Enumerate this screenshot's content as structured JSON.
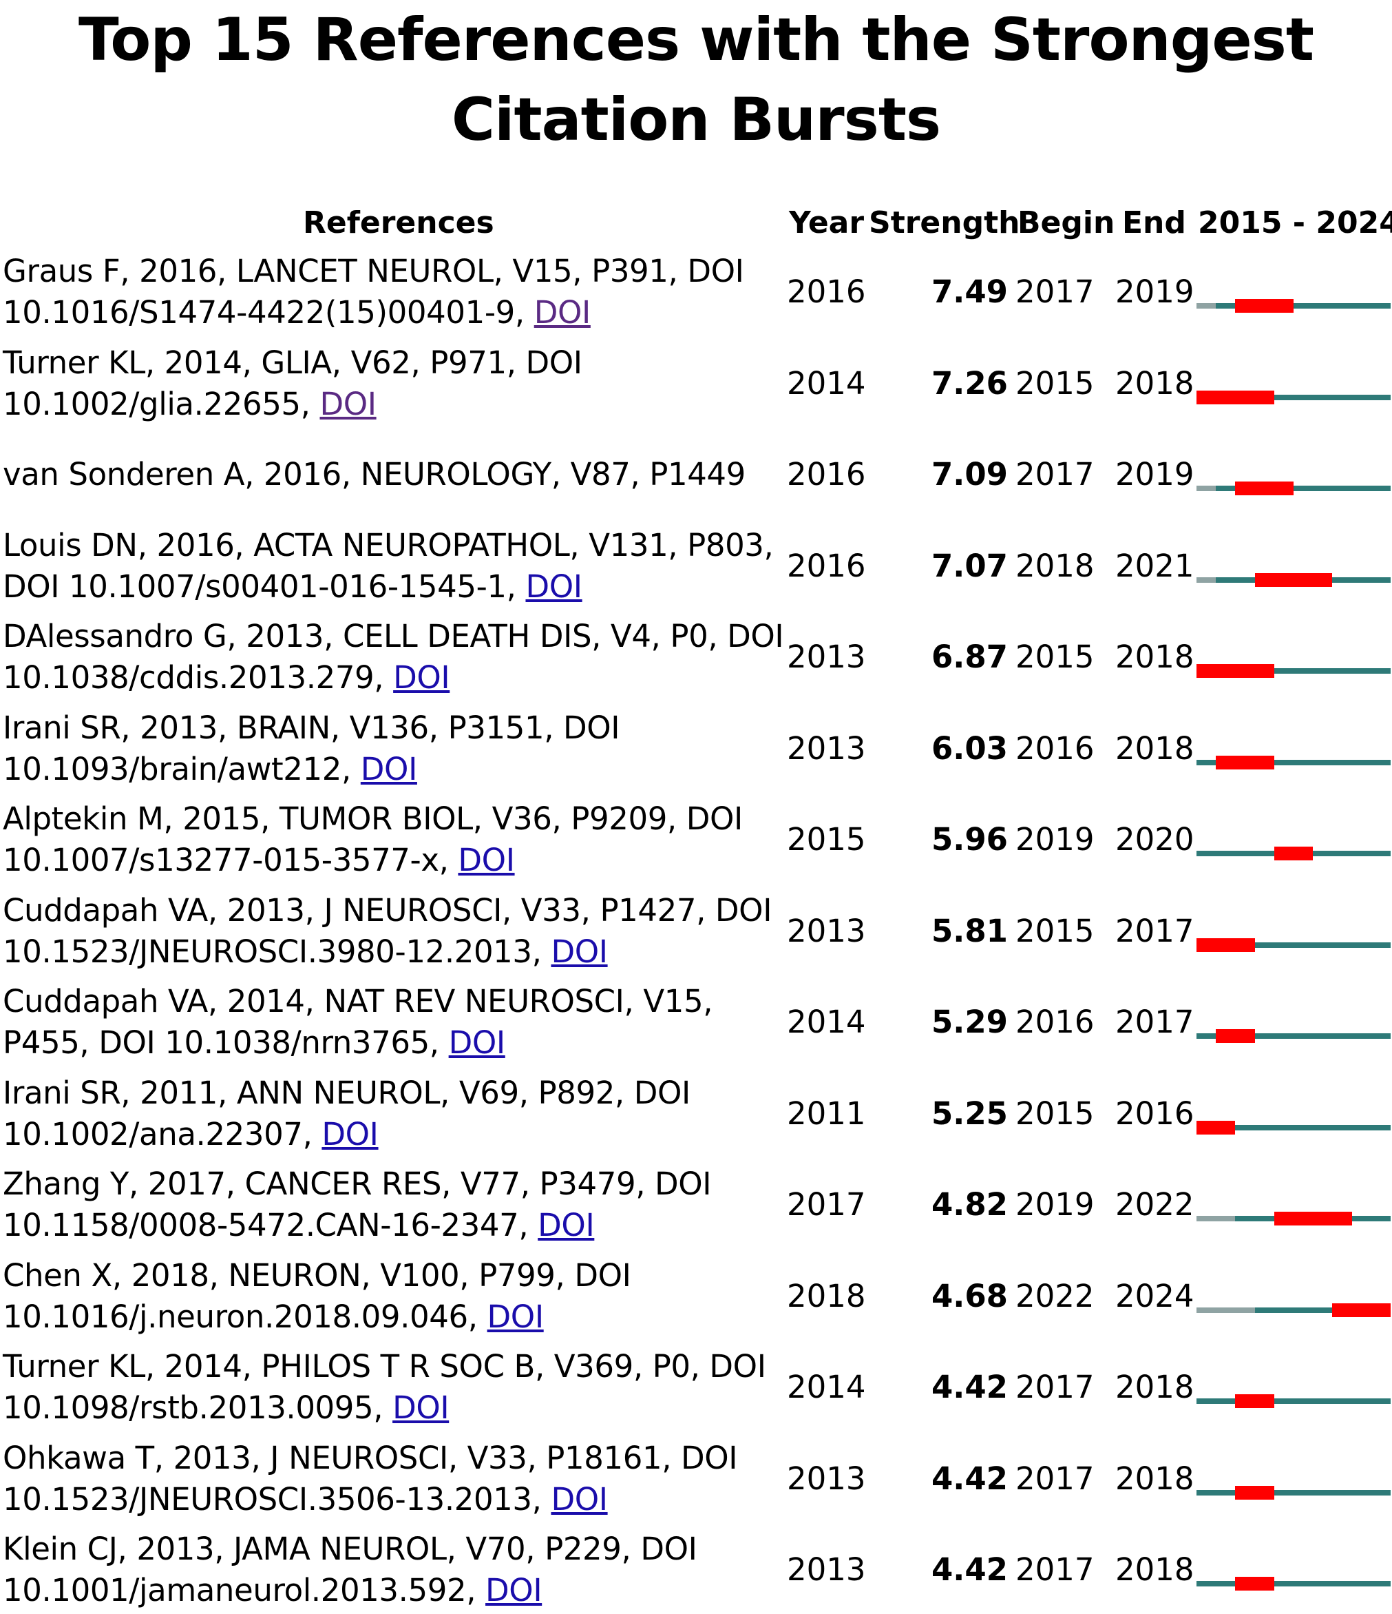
{
  "title_lines": [
    "Top 15 References with the Strongest",
    "Citation Bursts"
  ],
  "headers": {
    "references": "References",
    "year": "Year",
    "strength": "Strength",
    "begin": "Begin",
    "end": "End",
    "range": "2015 - 2024"
  },
  "colors": {
    "before_publication": "#8fa3a3",
    "active": "#2e7a78",
    "burst": "#ff0000",
    "link": "#1a0dab",
    "link_visited": "#5a2a83"
  },
  "chart_data": {
    "type": "table",
    "timeline_range": [
      2015,
      2024
    ],
    "columns": [
      "References",
      "Year",
      "Strength",
      "Begin",
      "End",
      "2015 - 2024"
    ],
    "rows": [
      {
        "ref_lines": [
          "Graus F, 2016, LANCET NEUROL, V15, P391, DOI",
          "10.1016/S1474-4422(15)00401-9, "
        ],
        "doi": "DOI",
        "doi_visited": true,
        "year": 2016,
        "strength": "7.49",
        "begin": 2017,
        "end": 2019
      },
      {
        "ref_lines": [
          "Turner KL, 2014, GLIA, V62, P971, DOI",
          "10.1002/glia.22655, "
        ],
        "doi": "DOI",
        "doi_visited": true,
        "year": 2014,
        "strength": "7.26",
        "begin": 2015,
        "end": 2018
      },
      {
        "ref_lines": [
          "van Sonderen A, 2016, NEUROLOGY, V87, P1449"
        ],
        "doi": "",
        "doi_visited": false,
        "year": 2016,
        "strength": "7.09",
        "begin": 2017,
        "end": 2019
      },
      {
        "ref_lines": [
          "Louis DN, 2016, ACTA NEUROPATHOL, V131, P803,",
          "DOI 10.1007/s00401-016-1545-1, "
        ],
        "doi": "DOI",
        "doi_visited": false,
        "year": 2016,
        "strength": "7.07",
        "begin": 2018,
        "end": 2021
      },
      {
        "ref_lines": [
          "DAlessandro G, 2013, CELL DEATH DIS, V4, P0, DOI",
          "10.1038/cddis.2013.279, "
        ],
        "doi": "DOI",
        "doi_visited": false,
        "year": 2013,
        "strength": "6.87",
        "begin": 2015,
        "end": 2018
      },
      {
        "ref_lines": [
          "Irani SR, 2013, BRAIN, V136, P3151, DOI",
          "10.1093/brain/awt212, "
        ],
        "doi": "DOI",
        "doi_visited": false,
        "year": 2013,
        "strength": "6.03",
        "begin": 2016,
        "end": 2018
      },
      {
        "ref_lines": [
          "Alptekin M, 2015, TUMOR BIOL, V36, P9209, DOI",
          "10.1007/s13277-015-3577-x, "
        ],
        "doi": "DOI",
        "doi_visited": false,
        "year": 2015,
        "strength": "5.96",
        "begin": 2019,
        "end": 2020
      },
      {
        "ref_lines": [
          "Cuddapah VA, 2013, J NEUROSCI, V33, P1427, DOI",
          "10.1523/JNEUROSCI.3980-12.2013, "
        ],
        "doi": "DOI",
        "doi_visited": false,
        "year": 2013,
        "strength": "5.81",
        "begin": 2015,
        "end": 2017
      },
      {
        "ref_lines": [
          "Cuddapah VA, 2014, NAT REV NEUROSCI, V15,",
          "P455, DOI 10.1038/nrn3765, "
        ],
        "doi": "DOI",
        "doi_visited": false,
        "year": 2014,
        "strength": "5.29",
        "begin": 2016,
        "end": 2017
      },
      {
        "ref_lines": [
          "Irani SR, 2011, ANN NEUROL, V69, P892, DOI",
          "10.1002/ana.22307, "
        ],
        "doi": "DOI",
        "doi_visited": false,
        "year": 2011,
        "strength": "5.25",
        "begin": 2015,
        "end": 2016
      },
      {
        "ref_lines": [
          "Zhang Y, 2017, CANCER RES, V77, P3479, DOI",
          "10.1158/0008-5472.CAN-16-2347, "
        ],
        "doi": "DOI",
        "doi_visited": false,
        "year": 2017,
        "strength": "4.82",
        "begin": 2019,
        "end": 2022
      },
      {
        "ref_lines": [
          "Chen X, 2018, NEURON, V100, P799, DOI",
          "10.1016/j.neuron.2018.09.046, "
        ],
        "doi": "DOI",
        "doi_visited": false,
        "year": 2018,
        "strength": "4.68",
        "begin": 2022,
        "end": 2024
      },
      {
        "ref_lines": [
          "Turner KL, 2014, PHILOS T R SOC B, V369, P0, DOI",
          "10.1098/rstb.2013.0095, "
        ],
        "doi": "DOI",
        "doi_visited": false,
        "year": 2014,
        "strength": "4.42",
        "begin": 2017,
        "end": 2018
      },
      {
        "ref_lines": [
          "Ohkawa T, 2013, J NEUROSCI, V33, P18161, DOI",
          "10.1523/JNEUROSCI.3506-13.2013, "
        ],
        "doi": "DOI",
        "doi_visited": false,
        "year": 2013,
        "strength": "4.42",
        "begin": 2017,
        "end": 2018
      },
      {
        "ref_lines": [
          "Klein CJ, 2013, JAMA NEUROL, V70, P229, DOI",
          "10.1001/jamaneurol.2013.592, "
        ],
        "doi": "DOI",
        "doi_visited": false,
        "year": 2013,
        "strength": "4.42",
        "begin": 2017,
        "end": 2018
      }
    ]
  }
}
